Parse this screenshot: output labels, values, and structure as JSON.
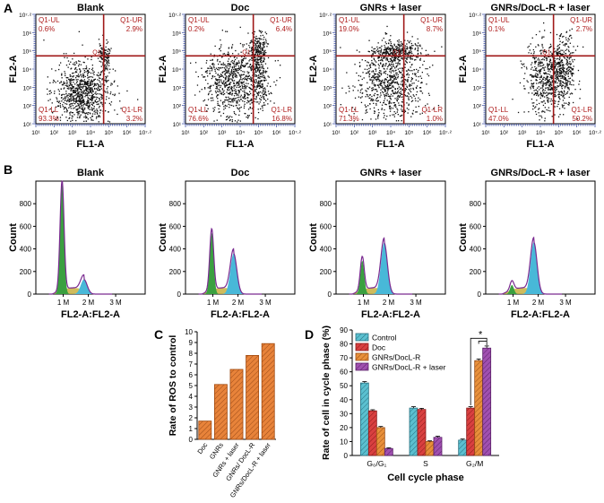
{
  "colors": {
    "quad_line": "#a01818",
    "quad_text": "#b02020",
    "dots": "#111111",
    "bar_orange": "#e8833a",
    "control": "#5bc0d0",
    "doc": "#d94040",
    "gnrs_docl": "#e8903a",
    "laser": "#a050b0",
    "hist_green": "#3aa040",
    "hist_yellow": "#c8b040",
    "hist_cyan": "#48b8d8",
    "hist_outline": "#7a2a90"
  },
  "panel_a": {
    "letter": "A",
    "xlabel": "FL1-A",
    "ylabel": "FL2-A",
    "x_ticks": [
      "10¹",
      "10²",
      "10³",
      "10⁴",
      "10⁵",
      "10⁶",
      "10⁷·²"
    ],
    "y_ticks": [
      "10⁷·²",
      "10⁶",
      "10⁵",
      "10⁴",
      "10³",
      "10²",
      "10¹"
    ],
    "quadrant_tag": "Q1",
    "plots": [
      {
        "title": "Blank",
        "ul_label": "Q1-UL",
        "ul": "0.6%",
        "ur_label": "Q1-UR",
        "ur": "2.9%",
        "ll_label": "Q1-LL",
        "ll": "93.3%",
        "lr_label": "Q1-LR",
        "lr": "3.2%"
      },
      {
        "title": "Doc",
        "ul_label": "Q1-UL",
        "ul": "0.2%",
        "ur_label": "Q1-UR",
        "ur": "6.4%",
        "ll_label": "Q1-LL",
        "ll": "76.6%",
        "lr_label": "Q1-LR",
        "lr": "16.8%"
      },
      {
        "title": "GNRs + laser",
        "ul_label": "Q1-UL",
        "ul": "19.0%",
        "ur_label": "Q1-UR",
        "ur": "8.7%",
        "ll_label": "Q1-LL",
        "ll": "71.3%",
        "lr_label": "Q1-LR",
        "lr": "1.0%"
      },
      {
        "title": "GNRs/DocL-R + laser",
        "ul_label": "Q1-UL",
        "ul": "0.1%",
        "ur_label": "Q1-UR",
        "ur": "2.7%",
        "ll_label": "Q1-LL",
        "ll": "47.0%",
        "lr_label": "Q1-LR",
        "lr": "50.2%"
      }
    ]
  },
  "panel_b": {
    "letter": "B",
    "xlabel": "FL2-A:FL2-A",
    "ylabel": "Count",
    "x_ticks": [
      "1 M",
      "2 M",
      "3 M"
    ],
    "y_ticks": [
      "800",
      "600",
      "400",
      "200",
      "0"
    ],
    "plots": [
      {
        "title": "Blank",
        "g1_peak": 970,
        "g2_peak": 130
      },
      {
        "title": "Doc",
        "g1_peak": 540,
        "g2_peak": 360
      },
      {
        "title": "GNRs + laser",
        "g1_peak": 295,
        "g2_peak": 455
      },
      {
        "title": "GNRs/DocL-R + laser",
        "g1_peak": 80,
        "g2_peak": 460
      }
    ]
  },
  "chart_data": [
    {
      "type": "bar",
      "letter": "C",
      "title": "",
      "xlabel": "",
      "ylabel": "Rate of ROS to control",
      "categories": [
        "Doc",
        "GNRs",
        "GNRs + laser",
        "GNRs/ DocL-R",
        "GNRs/DocL-R + laser"
      ],
      "values": [
        1.7,
        5.1,
        6.5,
        7.8,
        8.9
      ],
      "ylim": [
        0,
        10
      ],
      "y_ticks": [
        "0",
        "1",
        "2",
        "3",
        "4",
        "5",
        "6",
        "7",
        "8",
        "9",
        "10"
      ]
    },
    {
      "type": "bar",
      "letter": "D",
      "title": "",
      "xlabel": "Cell cycle phase",
      "ylabel": "Rate of cell in cycle phase (%)",
      "categories": [
        "G₀/G₁",
        "S",
        "G₂/M"
      ],
      "series": [
        {
          "name": "Control",
          "values": [
            52,
            34,
            11
          ],
          "errors": [
            1.0,
            1.0,
            0.8
          ]
        },
        {
          "name": "Doc",
          "values": [
            32,
            33,
            34
          ],
          "errors": [
            0.8,
            0.8,
            1.0
          ]
        },
        {
          "name": "GNRs/DocL-R",
          "values": [
            20,
            10,
            68
          ],
          "errors": [
            0.8,
            0.5,
            1.2
          ]
        },
        {
          "name": "GNRs/DocL-R + laser",
          "values": [
            5,
            13,
            77
          ],
          "errors": [
            0.5,
            0.8,
            1.5
          ]
        }
      ],
      "ylim": [
        0,
        90
      ],
      "y_ticks": [
        "0",
        "10",
        "20",
        "30",
        "40",
        "50",
        "60",
        "70",
        "80",
        "90"
      ],
      "annotation": "*",
      "legend_position": "top-left"
    }
  ]
}
